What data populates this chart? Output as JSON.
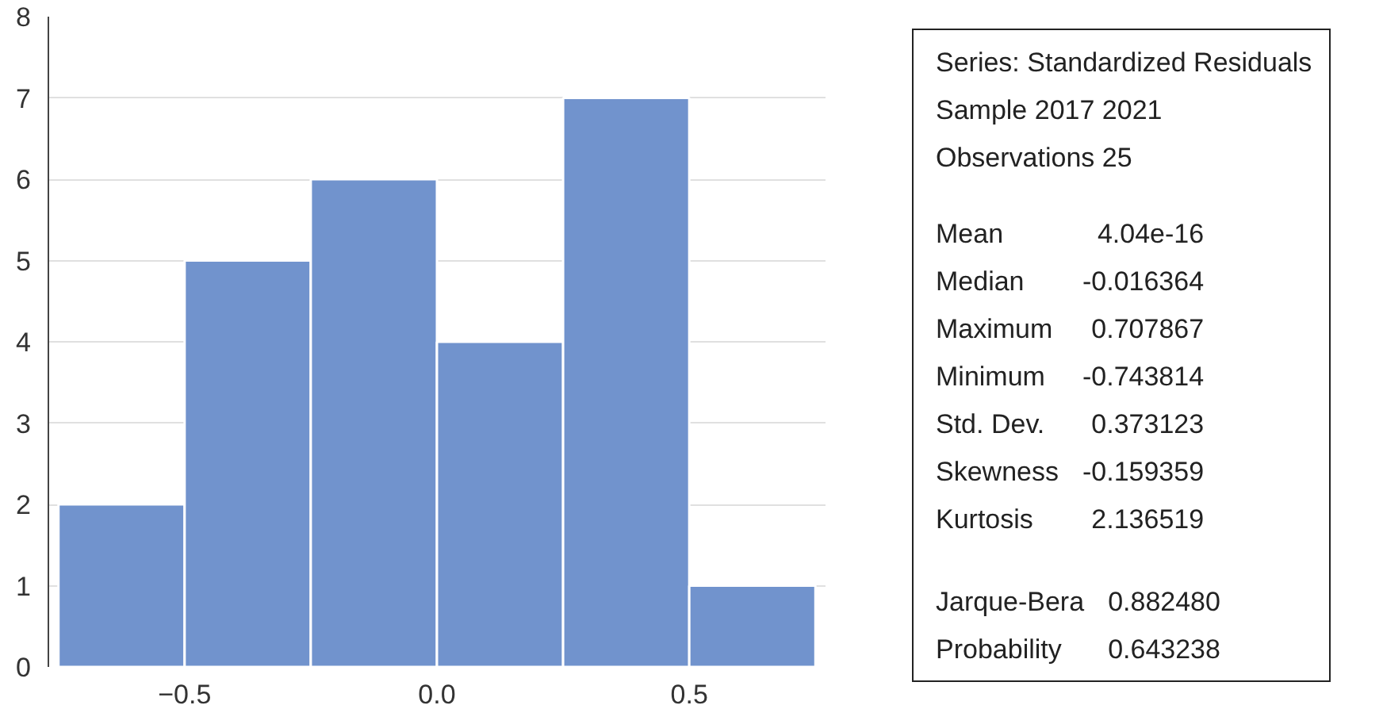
{
  "chart_data": {
    "type": "histogram",
    "bins": [
      -0.75,
      -0.5,
      -0.25,
      0,
      0.25,
      0.5,
      0.75
    ],
    "values": [
      2,
      5,
      6,
      4,
      7,
      1
    ],
    "color": "#7193cd",
    "xlim": [
      -0.77,
      0.77
    ],
    "xticks": [
      -0.5,
      {
        "value": 0,
        "label": "0.0"
      },
      0.5
    ],
    "ylim": [
      0,
      8
    ],
    "yticks": [
      0,
      1,
      2,
      3,
      4,
      5,
      6,
      7,
      8
    ],
    "grid": "y",
    "annotations": [
      "Series: Standardized Residuals",
      "Sample 2017 2021",
      "Observations 25",
      "Mean 4.04e-16",
      "Median -0.016364",
      "Maximum 0.707867",
      "Minimum -0.743814",
      "Std. Dev. 0.373123",
      "Skewness -0.159359",
      "Kurtosis 2.136519",
      "Jarque-Bera 0.882480",
      "Probability 0.643238"
    ]
  }
}
